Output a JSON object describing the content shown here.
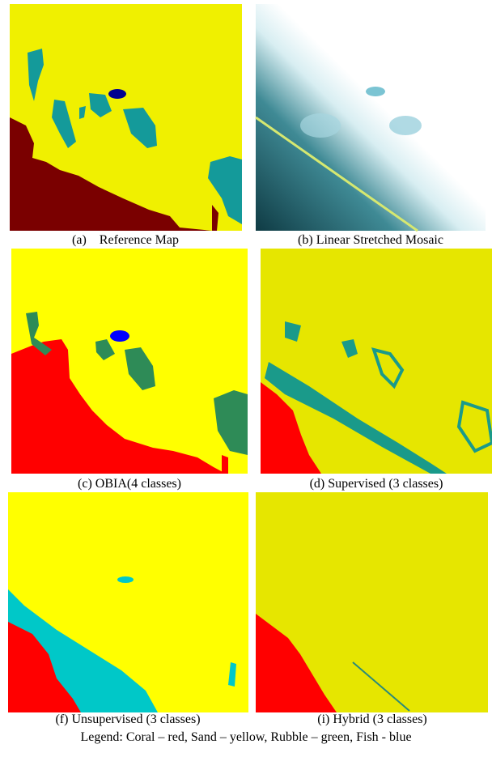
{
  "panels": [
    {
      "caption": "(a)    Reference Map"
    },
    {
      "caption": "(b) Linear Stretched Mosaic"
    },
    {
      "caption": "(c) OBIA(4 classes)"
    },
    {
      "caption": "(d) Supervised (3 classes)"
    },
    {
      "caption": "(f) Unsupervised (3 classes)"
    },
    {
      "caption": "(i) Hybrid (3 classes)"
    }
  ],
  "legend": "Legend: Coral – red, Sand – yellow, Rubble – green, Fish - blue"
}
